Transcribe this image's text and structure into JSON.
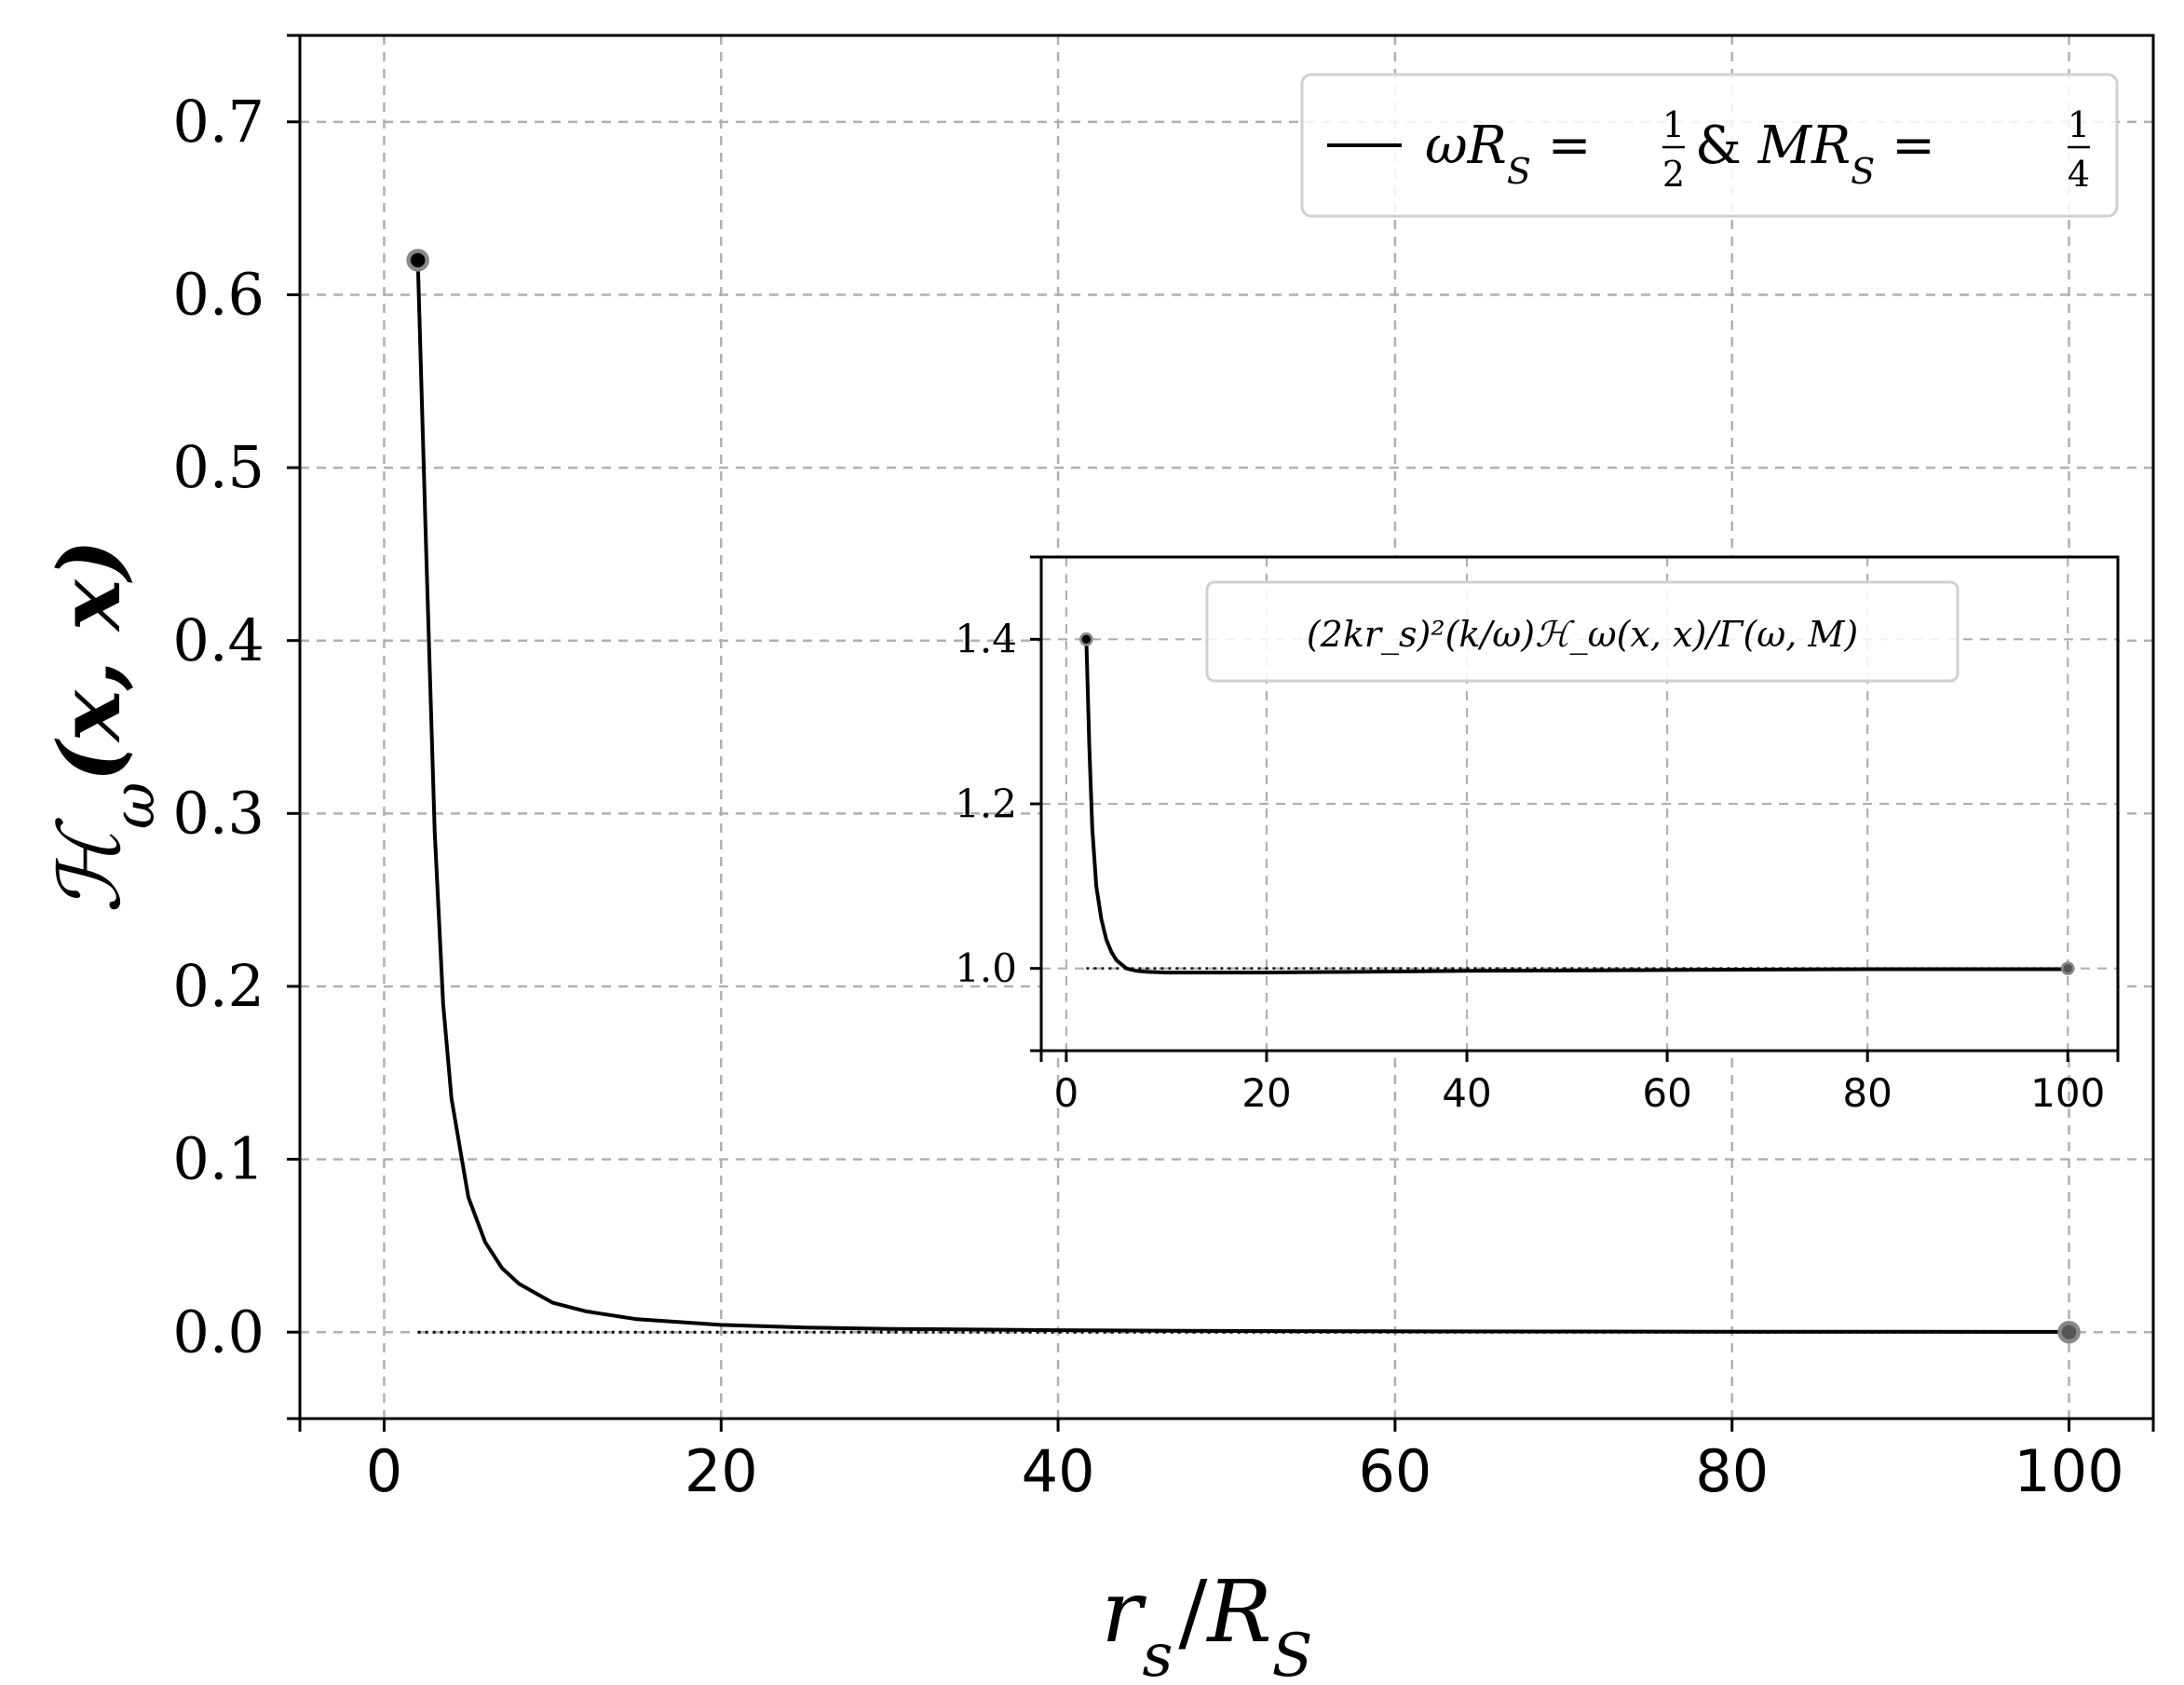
{
  "chart_data": [
    {
      "type": "line",
      "xlabel": {
        "r": "r",
        "sub": "s",
        "slash": "/",
        "R": "R",
        "sub2": "S"
      },
      "ylabel": {
        "H": "ℋ",
        "sub": "ω",
        "args": "(x, x)"
      },
      "xlim": [
        -5,
        105
      ],
      "ylim": [
        -0.05,
        0.75
      ],
      "xticks": [
        0,
        20,
        40,
        60,
        80,
        100
      ],
      "yticks": [
        0.0,
        0.1,
        0.2,
        0.3,
        0.4,
        0.5,
        0.6,
        0.7
      ],
      "xtick_labels": [
        "0",
        "20",
        "40",
        "60",
        "80",
        "100"
      ],
      "ytick_labels": [
        "0.0",
        "0.1",
        "0.2",
        "0.3",
        "0.4",
        "0.5",
        "0.6",
        "0.7"
      ],
      "grid": true,
      "legend": {
        "position": "upper right",
        "label": {
          "w": "ωR",
          "wsub": "S",
          "eq1": " = ",
          "f1num": "1",
          "f1den": "2",
          "amp": " & ",
          "m": "MR",
          "msub": "S",
          "eq2": " = ",
          "f2num": "1",
          "f2den": "4"
        }
      },
      "series": [
        {
          "x": [
            2,
            2.5,
            3,
            3.5,
            4,
            5,
            6,
            7,
            8,
            10,
            12,
            15,
            20,
            25,
            30,
            40,
            50,
            60,
            70,
            80,
            90,
            100
          ],
          "y": [
            0.62,
            0.45,
            0.29,
            0.19,
            0.135,
            0.078,
            0.052,
            0.037,
            0.028,
            0.017,
            0.012,
            0.0075,
            0.0042,
            0.0027,
            0.0019,
            0.0011,
            0.0007,
            0.0005,
            0.00035,
            0.00027,
            0.0002,
            0.00016
          ],
          "color": "#000000"
        }
      ],
      "reference_line": {
        "y": 0.0,
        "style": "dotted",
        "color": "#000000"
      },
      "markers": [
        {
          "x": 2,
          "y": 0.62
        },
        {
          "x": 100,
          "y": 0.0
        }
      ]
    },
    {
      "type": "line",
      "role": "inset",
      "xlim": [
        -2.5,
        105
      ],
      "ylim": [
        0.9,
        1.5
      ],
      "xticks": [
        0,
        20,
        40,
        60,
        80,
        100
      ],
      "yticks": [
        1.0,
        1.2,
        1.4
      ],
      "xtick_labels": [
        "0",
        "20",
        "40",
        "60",
        "80",
        "100"
      ],
      "ytick_labels": [
        "1.0",
        "1.2",
        "1.4"
      ],
      "grid": true,
      "legend": {
        "position": "upper center",
        "label": "(2kr_s)²(k/ω)ℋ_ω(x, x)/Γ(ω, M)"
      },
      "series": [
        {
          "x": [
            2,
            2.3,
            2.6,
            3,
            3.5,
            4,
            4.5,
            5,
            6,
            7,
            8,
            10,
            12,
            15,
            20,
            30,
            40,
            60,
            80,
            100
          ],
          "y": [
            1.4,
            1.27,
            1.17,
            1.1,
            1.06,
            1.035,
            1.02,
            1.01,
            1.0,
            0.997,
            0.996,
            0.995,
            0.995,
            0.995,
            0.995,
            0.996,
            0.997,
            0.998,
            0.999,
            0.999
          ],
          "color": "#000000"
        }
      ],
      "reference_line": {
        "y": 1.0,
        "style": "dotted",
        "color": "#000000"
      },
      "markers": [
        {
          "x": 2,
          "y": 1.4
        },
        {
          "x": 100,
          "y": 1.0
        }
      ]
    }
  ]
}
